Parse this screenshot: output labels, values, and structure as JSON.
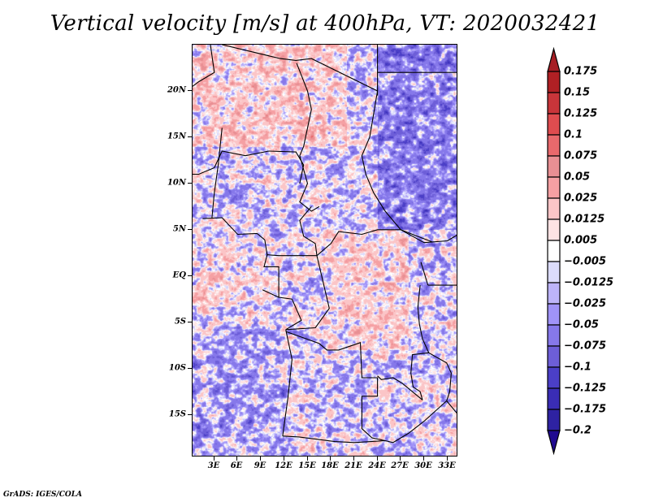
{
  "title": "Vertical velocity [m/s] at 400hPa, VT: 2020032421",
  "credit": "GrADS: IGES/COLA",
  "map": {
    "variable": "Vertical velocity",
    "units": "m/s",
    "level": "400hPa",
    "valid_time": "2020032421",
    "lon_range": [
      0.2,
      34.4
    ],
    "lat_range": [
      -19.6,
      25.0
    ],
    "y_ticks": [
      {
        "label": "20N",
        "lat": 20
      },
      {
        "label": "15N",
        "lat": 15
      },
      {
        "label": "10N",
        "lat": 10
      },
      {
        "label": "5N",
        "lat": 5
      },
      {
        "label": "EQ",
        "lat": 0
      },
      {
        "label": "5S",
        "lat": -5
      },
      {
        "label": "10S",
        "lat": -10
      },
      {
        "label": "15S",
        "lat": -15
      }
    ],
    "x_ticks": [
      {
        "label": "3E",
        "lon": 3
      },
      {
        "label": "6E",
        "lon": 6
      },
      {
        "label": "9E",
        "lon": 9
      },
      {
        "label": "12E",
        "lon": 12
      },
      {
        "label": "15E",
        "lon": 15
      },
      {
        "label": "18E",
        "lon": 18
      },
      {
        "label": "21E",
        "lon": 21
      },
      {
        "label": "24E",
        "lon": 24
      },
      {
        "label": "27E",
        "lon": 27
      },
      {
        "label": "30E",
        "lon": 30
      },
      {
        "label": "33E",
        "lon": 33
      }
    ]
  },
  "colorbar": {
    "labels": [
      "0.175",
      "0.15",
      "0.125",
      "0.1",
      "0.075",
      "0.05",
      "0.025",
      "0.0125",
      "0.005",
      "-0.005",
      "-0.0125",
      "-0.025",
      "-0.05",
      "-0.075",
      "-0.1",
      "-0.125",
      "-0.175",
      "-0.2"
    ],
    "colors": [
      "#b02024",
      "#c8353a",
      "#df4c4f",
      "#e8696c",
      "#e88f93",
      "#f5a0a3",
      "#fbc5c7",
      "#fde3e4",
      "#ffffff",
      "#dcdcfc",
      "#bdb4fa",
      "#a093f8",
      "#8678ea",
      "#6d5ed8",
      "#4b3fc7",
      "#3a2db5",
      "#2e22a2",
      "#24159a"
    ],
    "over_color": "#a61e24",
    "under_color": "#200a90"
  }
}
